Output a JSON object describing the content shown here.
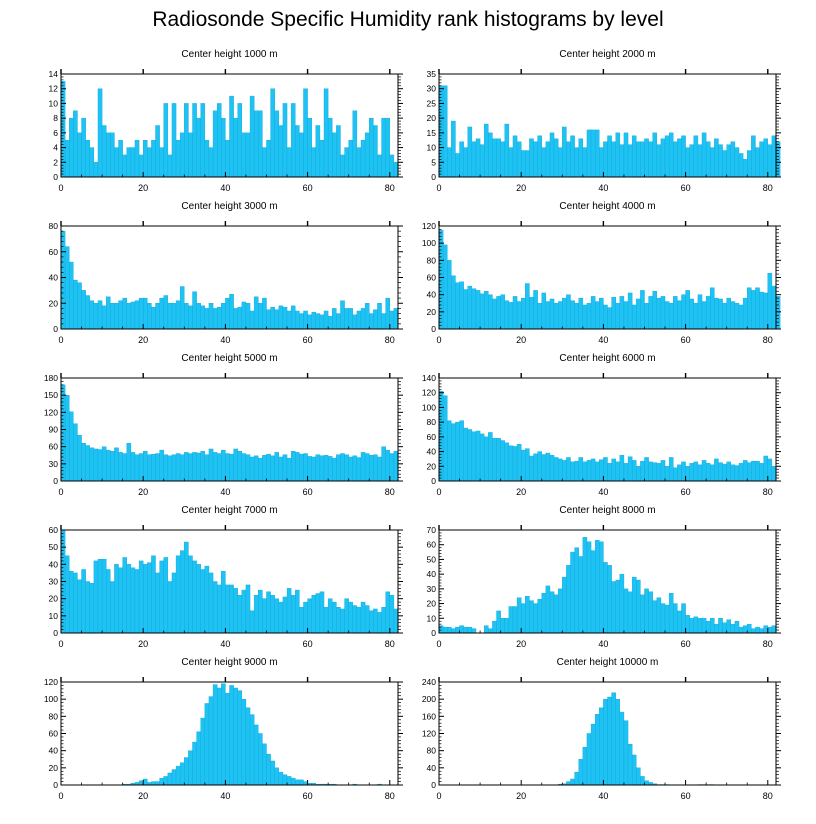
{
  "title": "Radiosonde Specific Humidity rank histograms by level",
  "colors": {
    "bar": "#1ec3f4",
    "bar_edge": "#10a6d6",
    "axis": "#000000"
  },
  "chart_data": [
    {
      "type": "bar",
      "title": "Center height 1000 m",
      "xlim": [
        0,
        82
      ],
      "ylim": [
        0,
        14
      ],
      "xticks": [
        0,
        20,
        40,
        60,
        80
      ],
      "yticks": [
        0,
        2,
        4,
        6,
        8,
        10,
        12,
        14
      ],
      "values": [
        13,
        5,
        8,
        9,
        6,
        8,
        5,
        4,
        2,
        12,
        7,
        6,
        6,
        4,
        5,
        3,
        4,
        4,
        5,
        3,
        5,
        4,
        5,
        7,
        4,
        10,
        3,
        10,
        5,
        6,
        10,
        6,
        10,
        8,
        10,
        5,
        4,
        9,
        10,
        8,
        5,
        11,
        8,
        10,
        6,
        6,
        11,
        9,
        9,
        4,
        5,
        12,
        9,
        7,
        10,
        4,
        10,
        7,
        6,
        12,
        8,
        4,
        7,
        5,
        12,
        8,
        6,
        7,
        3,
        4,
        5,
        9,
        4,
        5,
        6,
        8,
        7,
        3,
        8,
        8,
        3,
        2
      ]
    },
    {
      "type": "bar",
      "title": "Center height 2000 m",
      "xlim": [
        0,
        82
      ],
      "ylim": [
        0,
        35
      ],
      "xticks": [
        0,
        20,
        40,
        60,
        80
      ],
      "yticks": [
        0,
        5,
        10,
        15,
        20,
        25,
        30,
        35
      ],
      "values": [
        31,
        31,
        10,
        19,
        8,
        12,
        10,
        17,
        12,
        13,
        11,
        18,
        15,
        13,
        13,
        12,
        18,
        10,
        14,
        12,
        9,
        9,
        13,
        12,
        14,
        10,
        12,
        15,
        13,
        10,
        17,
        12,
        14,
        10,
        13,
        10,
        16,
        16,
        16,
        10,
        12,
        14,
        12,
        15,
        11,
        15,
        11,
        14,
        12,
        12,
        13,
        12,
        15,
        11,
        13,
        14,
        15,
        12,
        13,
        14,
        10,
        11,
        14,
        11,
        15,
        12,
        10,
        13,
        11,
        9,
        11,
        12,
        10,
        8,
        6,
        9,
        14,
        10,
        12,
        13,
        11,
        14,
        12
      ]
    },
    {
      "type": "bar",
      "title": "Center height 3000 m",
      "xlim": [
        0,
        82
      ],
      "ylim": [
        0,
        80
      ],
      "xticks": [
        0,
        20,
        40,
        60,
        80
      ],
      "yticks": [
        0,
        20,
        40,
        60,
        80
      ],
      "values": [
        76,
        64,
        52,
        38,
        36,
        30,
        26,
        22,
        20,
        22,
        18,
        25,
        20,
        20,
        22,
        24,
        20,
        21,
        22,
        24,
        24,
        20,
        17,
        20,
        24,
        26,
        20,
        20,
        22,
        33,
        20,
        18,
        29,
        20,
        18,
        16,
        20,
        16,
        17,
        20,
        24,
        27,
        16,
        17,
        21,
        20,
        14,
        25,
        20,
        24,
        15,
        17,
        15,
        18,
        17,
        14,
        18,
        14,
        12,
        14,
        11,
        13,
        12,
        11,
        14,
        10,
        16,
        12,
        22,
        16,
        16,
        11,
        14,
        16,
        20,
        12,
        15,
        20,
        12,
        24,
        14,
        16
      ]
    },
    {
      "type": "bar",
      "title": "Center height 4000 m",
      "xlim": [
        0,
        82
      ],
      "ylim": [
        0,
        120
      ],
      "xticks": [
        0,
        20,
        40,
        60,
        80
      ],
      "yticks": [
        0,
        20,
        40,
        60,
        80,
        100,
        120
      ],
      "values": [
        115,
        98,
        80,
        62,
        54,
        55,
        46,
        50,
        47,
        45,
        41,
        44,
        40,
        35,
        38,
        40,
        33,
        31,
        38,
        32,
        36,
        53,
        37,
        45,
        30,
        42,
        32,
        35,
        30,
        32,
        36,
        40,
        33,
        30,
        36,
        28,
        30,
        38,
        32,
        36,
        28,
        25,
        37,
        30,
        38,
        32,
        42,
        28,
        35,
        45,
        30,
        38,
        44,
        36,
        38,
        32,
        30,
        38,
        33,
        40,
        45,
        35,
        30,
        40,
        32,
        38,
        48,
        36,
        35,
        30,
        36,
        32,
        30,
        28,
        36,
        48,
        45,
        48,
        43,
        42,
        65,
        50,
        38
      ]
    },
    {
      "type": "bar",
      "title": "Center height 5000 m",
      "xlim": [
        0,
        82
      ],
      "ylim": [
        0,
        180
      ],
      "xticks": [
        0,
        20,
        40,
        60,
        80
      ],
      "yticks": [
        0,
        30,
        60,
        90,
        120,
        150,
        180
      ],
      "values": [
        168,
        150,
        121,
        100,
        80,
        66,
        62,
        58,
        56,
        55,
        60,
        54,
        52,
        58,
        50,
        48,
        66,
        50,
        46,
        48,
        52,
        46,
        47,
        48,
        54,
        46,
        44,
        46,
        48,
        46,
        50,
        48,
        50,
        49,
        52,
        46,
        56,
        50,
        48,
        54,
        48,
        47,
        56,
        52,
        48,
        46,
        42,
        44,
        40,
        45,
        47,
        44,
        50,
        42,
        46,
        40,
        52,
        50,
        47,
        48,
        43,
        42,
        46,
        44,
        45,
        43,
        40,
        46,
        48,
        46,
        42,
        44,
        41,
        50,
        48,
        45,
        46,
        42,
        60,
        54,
        48,
        52
      ]
    },
    {
      "type": "bar",
      "title": "Center height 6000 m",
      "xlim": [
        0,
        82
      ],
      "ylim": [
        0,
        140
      ],
      "xticks": [
        0,
        20,
        40,
        60,
        80
      ],
      "yticks": [
        0,
        20,
        40,
        60,
        80,
        100,
        120,
        140
      ],
      "values": [
        122,
        116,
        82,
        78,
        80,
        82,
        72,
        70,
        67,
        68,
        64,
        60,
        66,
        58,
        58,
        55,
        52,
        48,
        47,
        50,
        42,
        44,
        34,
        37,
        40,
        36,
        38,
        35,
        32,
        30,
        28,
        32,
        26,
        27,
        32,
        26,
        28,
        30,
        26,
        29,
        32,
        24,
        30,
        26,
        35,
        24,
        33,
        28,
        20,
        27,
        32,
        26,
        25,
        24,
        28,
        20,
        32,
        18,
        22,
        26,
        20,
        24,
        26,
        22,
        28,
        24,
        22,
        30,
        25,
        23,
        26,
        22,
        21,
        24,
        28,
        25,
        27,
        27,
        24,
        34,
        30,
        20
      ]
    },
    {
      "type": "bar",
      "title": "Center height 7000 m",
      "xlim": [
        0,
        82
      ],
      "ylim": [
        0,
        60
      ],
      "xticks": [
        0,
        20,
        40,
        60,
        80
      ],
      "yticks": [
        0,
        10,
        20,
        30,
        40,
        50,
        60
      ],
      "values": [
        60,
        45,
        36,
        35,
        31,
        37,
        30,
        29,
        42,
        43,
        43,
        37,
        30,
        40,
        38,
        44,
        40,
        38,
        37,
        42,
        40,
        41,
        45,
        35,
        42,
        44,
        30,
        35,
        45,
        48,
        53,
        45,
        42,
        40,
        37,
        39,
        35,
        30,
        28,
        36,
        28,
        28,
        26,
        22,
        25,
        28,
        13,
        22,
        25,
        20,
        24,
        22,
        20,
        18,
        21,
        26,
        22,
        25,
        15,
        18,
        20,
        22,
        23,
        24,
        15,
        20,
        18,
        15,
        14,
        20,
        18,
        16,
        15,
        18,
        16,
        13,
        14,
        12,
        15,
        24,
        22,
        14
      ]
    },
    {
      "type": "bar",
      "title": "Center height 8000 m",
      "xlim": [
        0,
        82
      ],
      "ylim": [
        0,
        70
      ],
      "xticks": [
        0,
        20,
        40,
        60,
        80
      ],
      "yticks": [
        0,
        10,
        20,
        30,
        40,
        50,
        60,
        70
      ],
      "values": [
        5,
        4,
        4,
        3,
        4,
        5,
        4,
        4,
        3,
        0,
        0,
        5,
        3,
        8,
        15,
        10,
        10,
        18,
        18,
        24,
        20,
        25,
        22,
        20,
        23,
        27,
        32,
        28,
        26,
        30,
        38,
        46,
        55,
        58,
        52,
        65,
        62,
        56,
        63,
        62,
        48,
        46,
        35,
        36,
        40,
        30,
        28,
        38,
        36,
        26,
        30,
        28,
        22,
        24,
        20,
        19,
        27,
        20,
        15,
        20,
        12,
        10,
        11,
        10,
        10,
        8,
        10,
        6,
        10,
        7,
        9,
        6,
        8,
        4,
        5,
        6,
        3,
        4,
        3,
        5,
        4,
        5
      ]
    },
    {
      "type": "bar",
      "title": "Center height 9000 m",
      "xlim": [
        0,
        82
      ],
      "ylim": [
        0,
        120
      ],
      "xticks": [
        0,
        20,
        40,
        60,
        80
      ],
      "yticks": [
        0,
        20,
        40,
        60,
        80,
        100,
        120
      ],
      "values": [
        0,
        0,
        0,
        0,
        0,
        0,
        0,
        0,
        0,
        0,
        0,
        0,
        0,
        0,
        0,
        1,
        1,
        2,
        3,
        5,
        7,
        3,
        4,
        4,
        8,
        10,
        14,
        18,
        22,
        26,
        32,
        40,
        50,
        62,
        78,
        95,
        103,
        117,
        113,
        118,
        107,
        116,
        113,
        110,
        100,
        90,
        82,
        70,
        60,
        48,
        36,
        28,
        20,
        15,
        12,
        10,
        8,
        6,
        6,
        4,
        2,
        2,
        1,
        1,
        1,
        1,
        1,
        0,
        0,
        0,
        0,
        1,
        0,
        0,
        0,
        0,
        0,
        1,
        0,
        0,
        0,
        0
      ]
    },
    {
      "type": "bar",
      "title": "Center height 10000 m",
      "xlim": [
        0,
        82
      ],
      "ylim": [
        0,
        240
      ],
      "xticks": [
        0,
        20,
        40,
        60,
        80
      ],
      "yticks": [
        0,
        40,
        80,
        120,
        160,
        200,
        240
      ],
      "values": [
        0,
        0,
        0,
        0,
        0,
        0,
        0,
        0,
        0,
        0,
        0,
        0,
        0,
        0,
        0,
        0,
        0,
        0,
        0,
        0,
        0,
        0,
        0,
        0,
        0,
        0,
        0,
        0,
        0,
        2,
        3,
        8,
        14,
        30,
        60,
        88,
        120,
        142,
        165,
        180,
        200,
        205,
        215,
        200,
        170,
        150,
        95,
        70,
        40,
        20,
        10,
        6,
        3,
        1,
        1,
        1,
        0,
        0,
        0,
        0,
        0,
        0,
        0,
        1,
        1,
        1,
        1,
        0,
        0,
        0,
        0,
        0,
        0,
        0,
        0,
        0,
        0,
        0,
        0,
        0,
        0,
        0
      ]
    }
  ]
}
